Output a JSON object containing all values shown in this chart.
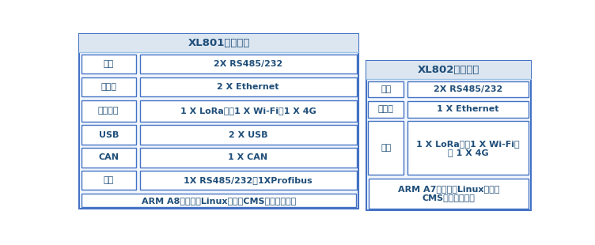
{
  "bg_color": "#ffffff",
  "border_color": "#4472c4",
  "header_bg": "#dce6f1",
  "text_color": "#1f4e79",
  "cell_bg": "#ffffff",
  "outer_bg": "#f2f7fd",
  "xl801_title": "XL801硬件配置",
  "xl802_title": "XL802硬件配置",
  "xl801_rows": [
    [
      "串口",
      "2X RS485/232"
    ],
    [
      "以太网",
      "2 X Ethernet"
    ],
    [
      "无线通信",
      "1 X LoRa，加1 X Wi-Fi或1 X 4G"
    ],
    [
      "USB",
      "2 X USB"
    ],
    [
      "CAN",
      "1 X CAN"
    ],
    [
      "串口",
      "1X RS485/232或1XProfibus"
    ]
  ],
  "xl801_footer": "ARM A8处理器，Linux系统，CMS通信管理系统",
  "xl802_rows": [
    [
      "串口",
      "2X RS485/232"
    ],
    [
      "以太网",
      "1 X Ethernet"
    ],
    [
      "无线",
      "1 X LoRa，或1 X Wi-Fi，\n或 1 X 4G"
    ]
  ],
  "xl802_footer": "ARM A7处理器，Linux系统，\nCMS通信管理系统",
  "font_size": 8.0,
  "title_font_size": 9.5
}
